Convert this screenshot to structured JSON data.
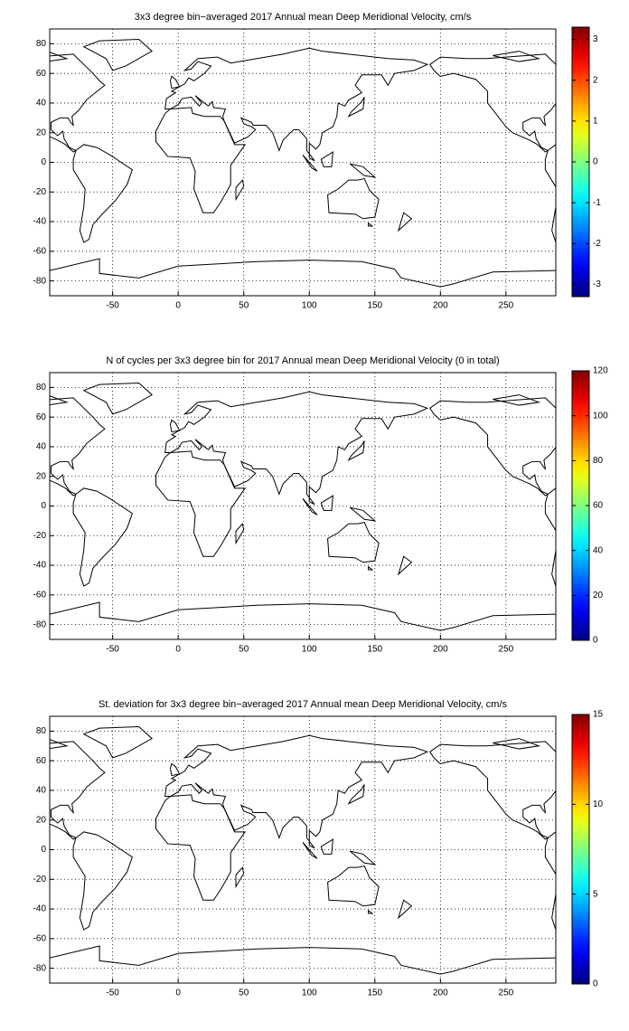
{
  "chart_data": [
    {
      "type": "map",
      "title": "3x3 degree bin−averaged 2017 Annual mean Deep Meridional Velocity, cm/s",
      "xlim": [
        -98,
        288
      ],
      "ylim": [
        -90,
        90
      ],
      "xticks": [
        -50,
        0,
        50,
        100,
        150,
        200,
        250
      ],
      "yticks": [
        -80,
        -60,
        -40,
        -20,
        0,
        20,
        40,
        60,
        80
      ],
      "grid": true,
      "colorbar": {
        "colormap": "jet",
        "clim": [
          -3.3,
          3.3
        ],
        "ticks": [
          -3,
          -2,
          -1,
          0,
          1,
          2,
          3
        ]
      }
    },
    {
      "type": "map",
      "title": "N of cycles per 3x3 degree bin for 2017 Annual mean Deep Meridional Velocity (0 in total)",
      "xlim": [
        -98,
        288
      ],
      "ylim": [
        -90,
        90
      ],
      "xticks": [
        -50,
        0,
        50,
        100,
        150,
        200,
        250
      ],
      "yticks": [
        -80,
        -60,
        -40,
        -20,
        0,
        20,
        40,
        60,
        80
      ],
      "grid": true,
      "colorbar": {
        "colormap": "jet",
        "clim": [
          0,
          120
        ],
        "ticks": [
          0,
          20,
          40,
          60,
          80,
          100,
          120
        ]
      }
    },
    {
      "type": "map",
      "title": "St. deviation for 3x3 degree bin−averaged 2017 Annual mean Deep Meridional Velocity, cm/s",
      "xlim": [
        -98,
        288
      ],
      "ylim": [
        -90,
        90
      ],
      "xticks": [
        -50,
        0,
        50,
        100,
        150,
        200,
        250
      ],
      "yticks": [
        -80,
        -60,
        -40,
        -20,
        0,
        20,
        40,
        60,
        80
      ],
      "grid": true,
      "colorbar": {
        "colormap": "jet",
        "clim": [
          0,
          15
        ],
        "ticks": [
          0,
          5,
          10,
          15
        ]
      }
    }
  ]
}
